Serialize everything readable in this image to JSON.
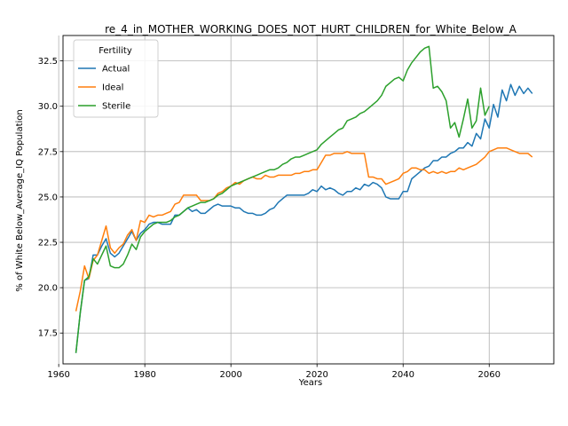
{
  "chart_data": {
    "type": "line",
    "title": "re_4_in_MOTHER_WORKING_DOES_NOT_HURT_CHILDREN_for_White_Below_A",
    "xlabel": "Years",
    "ylabel": "% of White Below_Average_IQ Population",
    "xlim": [
      1961,
      2075
    ],
    "ylim": [
      15.8,
      33.9
    ],
    "xticks": [
      1960,
      1980,
      2000,
      2020,
      2040,
      2060
    ],
    "xtick_labels": [
      "1960",
      "1980",
      "2000",
      "2020",
      "2040",
      "2060"
    ],
    "yticks": [
      17.5,
      20.0,
      22.5,
      25.0,
      27.5,
      30.0,
      32.5
    ],
    "ytick_labels": [
      "17.5",
      "20.0",
      "22.5",
      "25.0",
      "27.5",
      "30.0",
      "32.5"
    ],
    "grid": true,
    "legend": {
      "title": "Fertility",
      "placement": "top-left"
    },
    "series": [
      {
        "name": "Actual",
        "color": "#1f77b4",
        "x": [
          1964,
          1965,
          1966,
          1967,
          1968,
          1969,
          1970,
          1971,
          1972,
          1973,
          1974,
          1975,
          1976,
          1977,
          1978,
          1979,
          1980,
          1981,
          1982,
          1983,
          1984,
          1985,
          1986,
          1987,
          1988,
          1989,
          1990,
          1991,
          1992,
          1993,
          1994,
          1995,
          1996,
          1997,
          1998,
          1999,
          2000,
          2001,
          2002,
          2003,
          2004,
          2005,
          2006,
          2007,
          2008,
          2009,
          2010,
          2011,
          2012,
          2013,
          2014,
          2015,
          2016,
          2017,
          2018,
          2019,
          2020,
          2021,
          2022,
          2023,
          2024,
          2025,
          2026,
          2027,
          2028,
          2029,
          2030,
          2031,
          2032,
          2033,
          2034,
          2035,
          2036,
          2037,
          2038,
          2039,
          2040,
          2041,
          2042,
          2043,
          2044,
          2045,
          2046,
          2047,
          2048,
          2049,
          2050,
          2051,
          2052,
          2053,
          2054,
          2055,
          2056,
          2057,
          2058,
          2059,
          2060,
          2061,
          2062,
          2063,
          2064,
          2065,
          2066,
          2067,
          2068,
          2069,
          2070
        ],
        "values": [
          16.4,
          18.6,
          20.4,
          20.5,
          21.8,
          21.8,
          22.3,
          22.7,
          21.9,
          21.7,
          21.9,
          22.3,
          22.7,
          23.1,
          22.6,
          23.0,
          23.2,
          23.5,
          23.6,
          23.6,
          23.5,
          23.5,
          23.5,
          24.0,
          24.0,
          24.2,
          24.4,
          24.2,
          24.3,
          24.1,
          24.1,
          24.3,
          24.5,
          24.6,
          24.5,
          24.5,
          24.5,
          24.4,
          24.4,
          24.2,
          24.1,
          24.1,
          24.0,
          24.0,
          24.1,
          24.3,
          24.4,
          24.7,
          24.9,
          25.1,
          25.1,
          25.1,
          25.1,
          25.1,
          25.2,
          25.4,
          25.3,
          25.6,
          25.4,
          25.5,
          25.4,
          25.2,
          25.1,
          25.3,
          25.3,
          25.5,
          25.4,
          25.7,
          25.6,
          25.8,
          25.7,
          25.5,
          25.0,
          24.9,
          24.9,
          24.9,
          25.3,
          25.3,
          26.0,
          26.2,
          26.4,
          26.6,
          26.7,
          27.0,
          27.0,
          27.2,
          27.2,
          27.4,
          27.5,
          27.7,
          27.7,
          28.0,
          27.8,
          28.5,
          28.2,
          29.3,
          28.8,
          30.1,
          29.4,
          30.9,
          30.3,
          31.2,
          30.6,
          31.1,
          30.7,
          31.0,
          30.7
        ]
      },
      {
        "name": "Ideal",
        "color": "#ff7f0e",
        "x": [
          1964,
          1965,
          1966,
          1967,
          1968,
          1969,
          1970,
          1971,
          1972,
          1973,
          1974,
          1975,
          1976,
          1977,
          1978,
          1979,
          1980,
          1981,
          1982,
          1983,
          1984,
          1985,
          1986,
          1987,
          1988,
          1989,
          1990,
          1991,
          1992,
          1993,
          1994,
          1995,
          1996,
          1997,
          1998,
          1999,
          2000,
          2001,
          2002,
          2003,
          2004,
          2005,
          2006,
          2007,
          2008,
          2009,
          2010,
          2011,
          2012,
          2013,
          2014,
          2015,
          2016,
          2017,
          2018,
          2019,
          2020,
          2021,
          2022,
          2023,
          2024,
          2025,
          2026,
          2027,
          2028,
          2029,
          2030,
          2031,
          2032,
          2033,
          2034,
          2035,
          2036,
          2037,
          2038,
          2039,
          2040,
          2041,
          2042,
          2043,
          2044,
          2045,
          2046,
          2047,
          2048,
          2049,
          2050,
          2051,
          2052,
          2053,
          2054,
          2055,
          2056,
          2057,
          2058,
          2059,
          2060,
          2061,
          2062,
          2063,
          2064,
          2065,
          2066,
          2067,
          2068,
          2069,
          2070
        ],
        "values": [
          18.7,
          19.8,
          21.2,
          20.5,
          21.5,
          21.8,
          22.6,
          23.4,
          22.2,
          21.9,
          22.2,
          22.4,
          22.9,
          23.2,
          22.6,
          23.7,
          23.6,
          24.0,
          23.9,
          24.0,
          24.0,
          24.1,
          24.2,
          24.6,
          24.7,
          25.1,
          25.1,
          25.1,
          25.1,
          24.8,
          24.8,
          24.8,
          24.9,
          25.2,
          25.3,
          25.5,
          25.6,
          25.8,
          25.7,
          25.9,
          26.0,
          26.1,
          26.0,
          26.0,
          26.2,
          26.1,
          26.1,
          26.2,
          26.2,
          26.2,
          26.2,
          26.3,
          26.3,
          26.4,
          26.4,
          26.5,
          26.5,
          26.9,
          27.3,
          27.3,
          27.4,
          27.4,
          27.4,
          27.5,
          27.4,
          27.4,
          27.4,
          27.4,
          26.1,
          26.1,
          26.0,
          26.0,
          25.7,
          25.8,
          25.9,
          26.0,
          26.3,
          26.4,
          26.6,
          26.6,
          26.5,
          26.5,
          26.3,
          26.4,
          26.3,
          26.4,
          26.3,
          26.4,
          26.4,
          26.6,
          26.5,
          26.6,
          26.7,
          26.8,
          27.0,
          27.2,
          27.5,
          27.6,
          27.7,
          27.7,
          27.7,
          27.6,
          27.5,
          27.4,
          27.4,
          27.4,
          27.2
        ]
      },
      {
        "name": "Sterile",
        "color": "#2ca02c",
        "x": [
          1964,
          1965,
          1966,
          1967,
          1968,
          1969,
          1970,
          1971,
          1972,
          1973,
          1974,
          1975,
          1976,
          1977,
          1978,
          1979,
          1980,
          1981,
          1982,
          1983,
          1984,
          1985,
          1986,
          1987,
          1988,
          1989,
          1990,
          1991,
          1992,
          1993,
          1994,
          1995,
          1996,
          1997,
          1998,
          1999,
          2000,
          2001,
          2002,
          2003,
          2004,
          2005,
          2006,
          2007,
          2008,
          2009,
          2010,
          2011,
          2012,
          2013,
          2014,
          2015,
          2016,
          2017,
          2018,
          2019,
          2020,
          2021,
          2022,
          2023,
          2024,
          2025,
          2026,
          2027,
          2028,
          2029,
          2030,
          2031,
          2032,
          2033,
          2034,
          2035,
          2036,
          2037,
          2038,
          2039,
          2040,
          2041,
          2042,
          2043,
          2044,
          2045,
          2046,
          2047,
          2048,
          2049,
          2050,
          2051,
          2052,
          2053,
          2054,
          2055,
          2056,
          2057,
          2058,
          2059,
          2060
        ],
        "values": [
          16.4,
          18.6,
          20.4,
          20.6,
          21.6,
          21.3,
          21.8,
          22.3,
          21.2,
          21.1,
          21.1,
          21.3,
          21.8,
          22.4,
          22.1,
          22.8,
          23.1,
          23.3,
          23.5,
          23.6,
          23.6,
          23.6,
          23.7,
          23.9,
          24.0,
          24.2,
          24.4,
          24.5,
          24.6,
          24.7,
          24.7,
          24.8,
          24.9,
          25.1,
          25.2,
          25.4,
          25.6,
          25.7,
          25.8,
          25.9,
          26.0,
          26.1,
          26.2,
          26.3,
          26.4,
          26.5,
          26.5,
          26.6,
          26.8,
          26.9,
          27.1,
          27.2,
          27.2,
          27.3,
          27.4,
          27.5,
          27.6,
          27.9,
          28.1,
          28.3,
          28.5,
          28.7,
          28.8,
          29.2,
          29.3,
          29.4,
          29.6,
          29.7,
          29.9,
          30.1,
          30.3,
          30.6,
          31.1,
          31.3,
          31.5,
          31.6,
          31.4,
          32.0,
          32.4,
          32.7,
          33.0,
          33.2,
          33.3,
          31.0,
          31.1,
          30.8,
          30.3,
          28.8,
          29.1,
          28.3,
          29.3,
          30.4,
          28.8,
          29.2,
          31.0,
          29.5,
          30.0
        ]
      }
    ]
  }
}
